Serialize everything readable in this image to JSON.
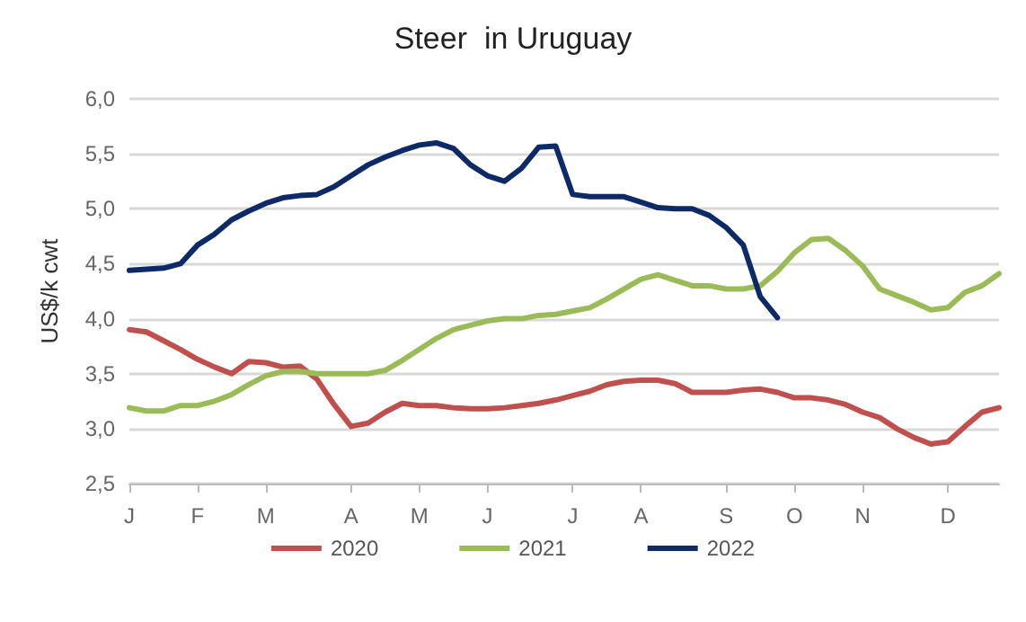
{
  "chart_data": {
    "type": "line",
    "title": "Steer  in Uruguay",
    "ylabel": "US$/k cwt",
    "categories": [
      "J",
      null,
      null,
      null,
      "F",
      null,
      null,
      null,
      "M",
      null,
      null,
      null,
      null,
      "A",
      null,
      null,
      null,
      "M",
      null,
      null,
      null,
      "J",
      null,
      null,
      null,
      null,
      "J",
      null,
      null,
      null,
      "A",
      null,
      null,
      null,
      null,
      "S",
      null,
      null,
      null,
      "O",
      null,
      null,
      null,
      "N",
      null,
      null,
      null,
      null,
      "D",
      null,
      null,
      null
    ],
    "series": [
      {
        "name": "2020",
        "color": "#c0504d",
        "values": [
          3.9,
          3.88,
          3.8,
          3.72,
          3.63,
          3.56,
          3.5,
          3.61,
          3.6,
          3.56,
          3.57,
          3.45,
          3.22,
          3.02,
          3.05,
          3.15,
          3.23,
          3.21,
          3.21,
          3.19,
          3.18,
          3.18,
          3.19,
          3.21,
          3.23,
          3.26,
          3.3,
          3.34,
          3.4,
          3.43,
          3.44,
          3.44,
          3.41,
          3.33,
          3.33,
          3.33,
          3.35,
          3.36,
          3.33,
          3.28,
          3.28,
          3.26,
          3.22,
          3.15,
          3.1,
          3.0,
          2.92,
          2.86,
          2.88,
          3.02,
          3.15,
          3.19
        ]
      },
      {
        "name": "2021",
        "color": "#9bbb59",
        "values": [
          3.19,
          3.16,
          3.16,
          3.21,
          3.21,
          3.25,
          3.31,
          3.4,
          3.48,
          3.52,
          3.52,
          3.5,
          3.5,
          3.5,
          3.5,
          3.53,
          3.62,
          3.72,
          3.82,
          3.9,
          3.94,
          3.98,
          4.0,
          4.0,
          4.03,
          4.04,
          4.07,
          4.1,
          4.18,
          4.27,
          4.36,
          4.4,
          4.35,
          4.3,
          4.3,
          4.27,
          4.27,
          4.3,
          4.43,
          4.6,
          4.72,
          4.73,
          4.62,
          4.48,
          4.27,
          4.21,
          4.15,
          4.08,
          4.1,
          4.24,
          4.3,
          4.41
        ]
      },
      {
        "name": "2022",
        "color": "#0d2a66",
        "values": [
          4.44,
          4.45,
          4.46,
          4.5,
          4.67,
          4.77,
          4.9,
          4.98,
          5.05,
          5.1,
          5.12,
          5.13,
          5.2,
          5.3,
          5.4,
          5.47,
          5.53,
          5.58,
          5.6,
          5.55,
          5.4,
          5.3,
          5.25,
          5.37,
          5.56,
          5.57,
          5.13,
          5.11,
          5.11,
          5.11,
          5.06,
          5.01,
          5.0,
          5.0,
          4.94,
          4.83,
          4.67,
          4.2,
          4.01,
          null,
          null,
          null,
          null,
          null,
          null,
          null,
          null,
          null,
          null,
          null,
          null,
          null
        ]
      }
    ],
    "ylim": [
      2.5,
      6.0
    ],
    "yticks": [
      {
        "value": 2.5,
        "label": "2,5"
      },
      {
        "value": 3.0,
        "label": "3,0"
      },
      {
        "value": 3.5,
        "label": "3,5"
      },
      {
        "value": 4.0,
        "label": "4,0"
      },
      {
        "value": 4.5,
        "label": "4,5"
      },
      {
        "value": 5.0,
        "label": "5,0"
      },
      {
        "value": 5.5,
        "label": "5,5"
      },
      {
        "value": 6.0,
        "label": "6,0"
      }
    ],
    "grid": "y",
    "legend": "bottom",
    "marker": "none",
    "line_style": "solid"
  }
}
